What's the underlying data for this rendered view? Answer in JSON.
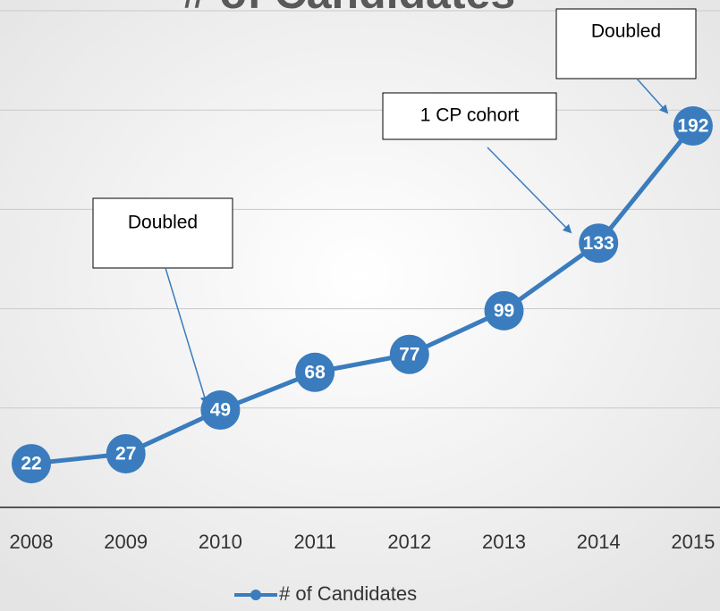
{
  "chart_data": {
    "type": "line",
    "title": "# of Candidates",
    "categories": [
      "2008",
      "2009",
      "2010",
      "2011",
      "2012",
      "2013",
      "2014",
      "2015"
    ],
    "series": [
      {
        "name": "# of Candidates",
        "color": "#3a7cbd",
        "values": [
          22,
          27,
          49,
          68,
          77,
          99,
          133,
          192
        ]
      }
    ],
    "ylim": [
      0,
      250
    ],
    "yticks": [
      0,
      50,
      100,
      150,
      200,
      250
    ],
    "grid": true,
    "legend": "bottom",
    "annotations": [
      {
        "text": "Doubled"
      },
      {
        "text": "1 CP cohort"
      },
      {
        "text": "Doubled"
      }
    ]
  }
}
